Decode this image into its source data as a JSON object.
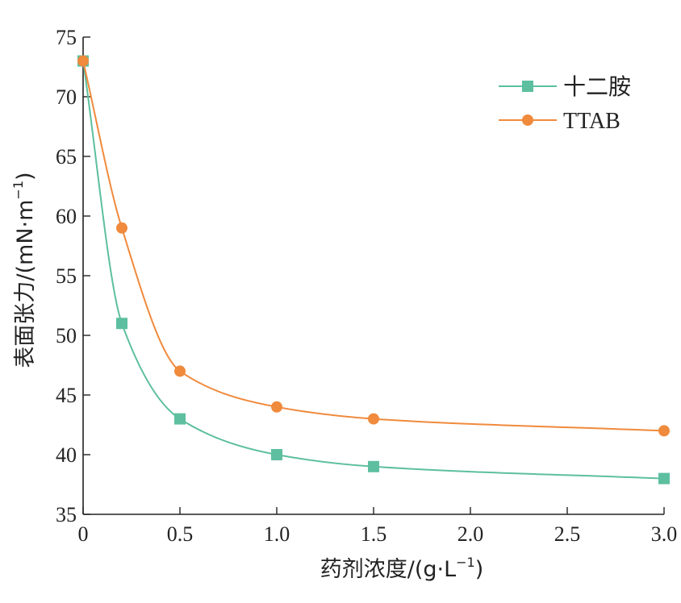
{
  "chart_data": {
    "type": "line",
    "xlabel": "药剂浓度/(g·L",
    "xlabel_sup": "−1",
    "xlabel_end": ")",
    "ylabel": "表面张力/(mN·m",
    "ylabel_sup": "−1",
    "ylabel_end": ")",
    "xlim": [
      0,
      3.0
    ],
    "ylim": [
      35,
      75
    ],
    "x_ticks": [
      "0",
      "0.5",
      "1.0",
      "1.5",
      "2.0",
      "2.5",
      "3.0"
    ],
    "x_tick_values": [
      0,
      0.5,
      1.0,
      1.5,
      2.0,
      2.5,
      3.0
    ],
    "y_ticks": [
      "35",
      "40",
      "45",
      "50",
      "55",
      "60",
      "65",
      "70",
      "75"
    ],
    "y_tick_values": [
      35,
      40,
      45,
      50,
      55,
      60,
      65,
      70,
      75
    ],
    "grid": false,
    "legend_position": "top-right",
    "series": [
      {
        "name": "十二胺",
        "color": "#5dbf9f",
        "marker": "square",
        "x": [
          0,
          0.2,
          0.5,
          1.0,
          1.5,
          3.0
        ],
        "values": [
          73,
          51,
          43,
          40,
          39,
          38
        ]
      },
      {
        "name": "TTAB",
        "color": "#f08a3c",
        "marker": "circle",
        "x": [
          0,
          0.2,
          0.5,
          1.0,
          1.5,
          3.0
        ],
        "values": [
          73,
          59,
          47,
          44,
          43,
          42
        ]
      }
    ]
  }
}
